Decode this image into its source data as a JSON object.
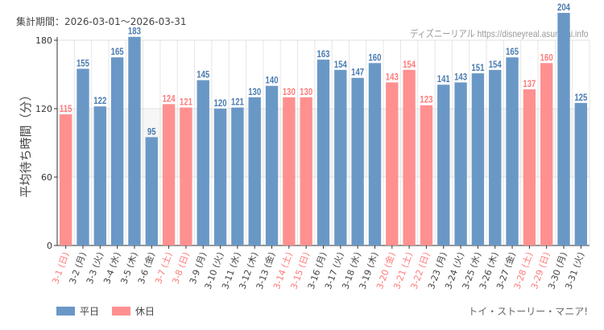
{
  "period_label": "集計期間：2026-03-01～2026-03-31",
  "credit": "ディズニーリアル https://disneyreal.asumirai.info",
  "footer": "トイ・ストーリー・マニア!",
  "colors": {
    "weekday": "#6a98c6",
    "holiday": "#ff9090",
    "weekday_label": "#4a7bb0",
    "holiday_label": "#ff7a7a"
  },
  "chart_data": {
    "type": "bar",
    "ylabel": "平均待ち時間（分）",
    "ylim": [
      0,
      180
    ],
    "yticks": [
      0,
      60,
      120,
      180
    ],
    "grid": true,
    "legend_placement": "bottom-left",
    "legend": [
      {
        "name": "平日",
        "key": "weekday"
      },
      {
        "name": "休日",
        "key": "holiday"
      }
    ],
    "categories": [
      "3-1 (日)",
      "3-2 (月)",
      "3-3 (火)",
      "3-4 (水)",
      "3-5 (木)",
      "3-6 (金)",
      "3-7 (土)",
      "3-8 (日)",
      "3-9 (月)",
      "3-10 (火)",
      "3-11 (水)",
      "3-12 (木)",
      "3-13 (金)",
      "3-14 (土)",
      "3-15 (日)",
      "3-16 (月)",
      "3-17 (火)",
      "3-18 (水)",
      "3-19 (木)",
      "3-20 (金)",
      "3-21 (土)",
      "3-22 (日)",
      "3-23 (月)",
      "3-24 (火)",
      "3-25 (水)",
      "3-26 (木)",
      "3-27 (金)",
      "3-28 (土)",
      "3-29 (日)",
      "3-30 (月)",
      "3-31 (火)"
    ],
    "values": [
      115,
      155,
      122,
      165,
      183,
      95,
      124,
      121,
      145,
      120,
      121,
      130,
      140,
      130,
      130,
      163,
      154,
      147,
      160,
      143,
      154,
      123,
      141,
      143,
      151,
      154,
      165,
      137,
      160,
      204,
      125
    ],
    "day_type": [
      "holiday",
      "weekday",
      "weekday",
      "weekday",
      "weekday",
      "weekday",
      "holiday",
      "holiday",
      "weekday",
      "weekday",
      "weekday",
      "weekday",
      "weekday",
      "holiday",
      "holiday",
      "weekday",
      "weekday",
      "weekday",
      "weekday",
      "holiday",
      "holiday",
      "holiday",
      "weekday",
      "weekday",
      "weekday",
      "weekday",
      "weekday",
      "holiday",
      "holiday",
      "weekday",
      "weekday"
    ]
  }
}
